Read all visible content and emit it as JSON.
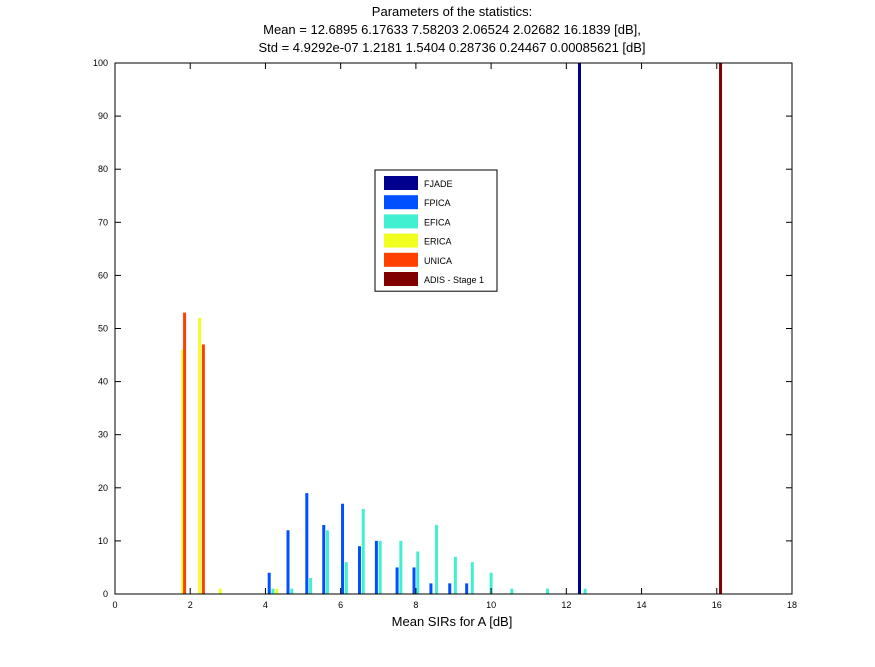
{
  "chart_data": {
    "type": "bar",
    "title": "Parameters of the statistics:",
    "subtitle_mean": "Mean = 12.6895      6.17633      7.58203      2.06524      2.02682      16.1839 [dB],",
    "subtitle_std": "Std = 4.9292e-07      1.2181      1.5404      0.28736      0.24467   0.00085621 [dB]",
    "xlabel": "Mean SIRs for A [dB]",
    "ylabel": "",
    "xlim": [
      0,
      18
    ],
    "ylim": [
      0,
      100
    ],
    "xticks": [
      "0",
      "2",
      "4",
      "6",
      "8",
      "10",
      "12",
      "14",
      "16",
      "18"
    ],
    "yticks": [
      "0",
      "10",
      "20",
      "30",
      "40",
      "50",
      "60",
      "70",
      "80",
      "90",
      "100"
    ],
    "legend_placement": "center",
    "grid": false,
    "series": [
      {
        "name": "FJADE",
        "color": "#00008f",
        "points": [
          [
            12.35,
            100
          ]
        ]
      },
      {
        "name": "FPICA",
        "color": "#0050ff",
        "points": [
          [
            4.1,
            4
          ],
          [
            4.6,
            12
          ],
          [
            5.1,
            19
          ],
          [
            5.55,
            13
          ],
          [
            6.05,
            17
          ],
          [
            6.5,
            9
          ],
          [
            6.95,
            10
          ],
          [
            7.5,
            5
          ],
          [
            7.95,
            5
          ],
          [
            8.4,
            2
          ],
          [
            8.9,
            2
          ],
          [
            9.35,
            2
          ]
        ]
      },
      {
        "name": "EFICA",
        "color": "#40f0d0",
        "points": [
          [
            4.2,
            1
          ],
          [
            4.7,
            1
          ],
          [
            5.2,
            3
          ],
          [
            5.65,
            12
          ],
          [
            6.15,
            6
          ],
          [
            6.6,
            16
          ],
          [
            7.05,
            10
          ],
          [
            7.6,
            10
          ],
          [
            8.05,
            8
          ],
          [
            8.55,
            13
          ],
          [
            9.05,
            7
          ],
          [
            9.5,
            6
          ],
          [
            10.0,
            4
          ],
          [
            10.55,
            1
          ],
          [
            11.5,
            1
          ],
          [
            12.5,
            1
          ]
        ]
      },
      {
        "name": "ERICA",
        "color": "#f0ff20",
        "points": [
          [
            1.8,
            46
          ],
          [
            2.25,
            52
          ],
          [
            2.8,
            1
          ],
          [
            4.3,
            1
          ]
        ]
      },
      {
        "name": "UNICA",
        "color": "#ff4000",
        "points": [
          [
            1.85,
            53
          ],
          [
            2.35,
            47
          ]
        ]
      },
      {
        "name": "ADIS - Stage 1",
        "color": "#800000",
        "points": [
          [
            16.1,
            100
          ]
        ]
      }
    ]
  }
}
